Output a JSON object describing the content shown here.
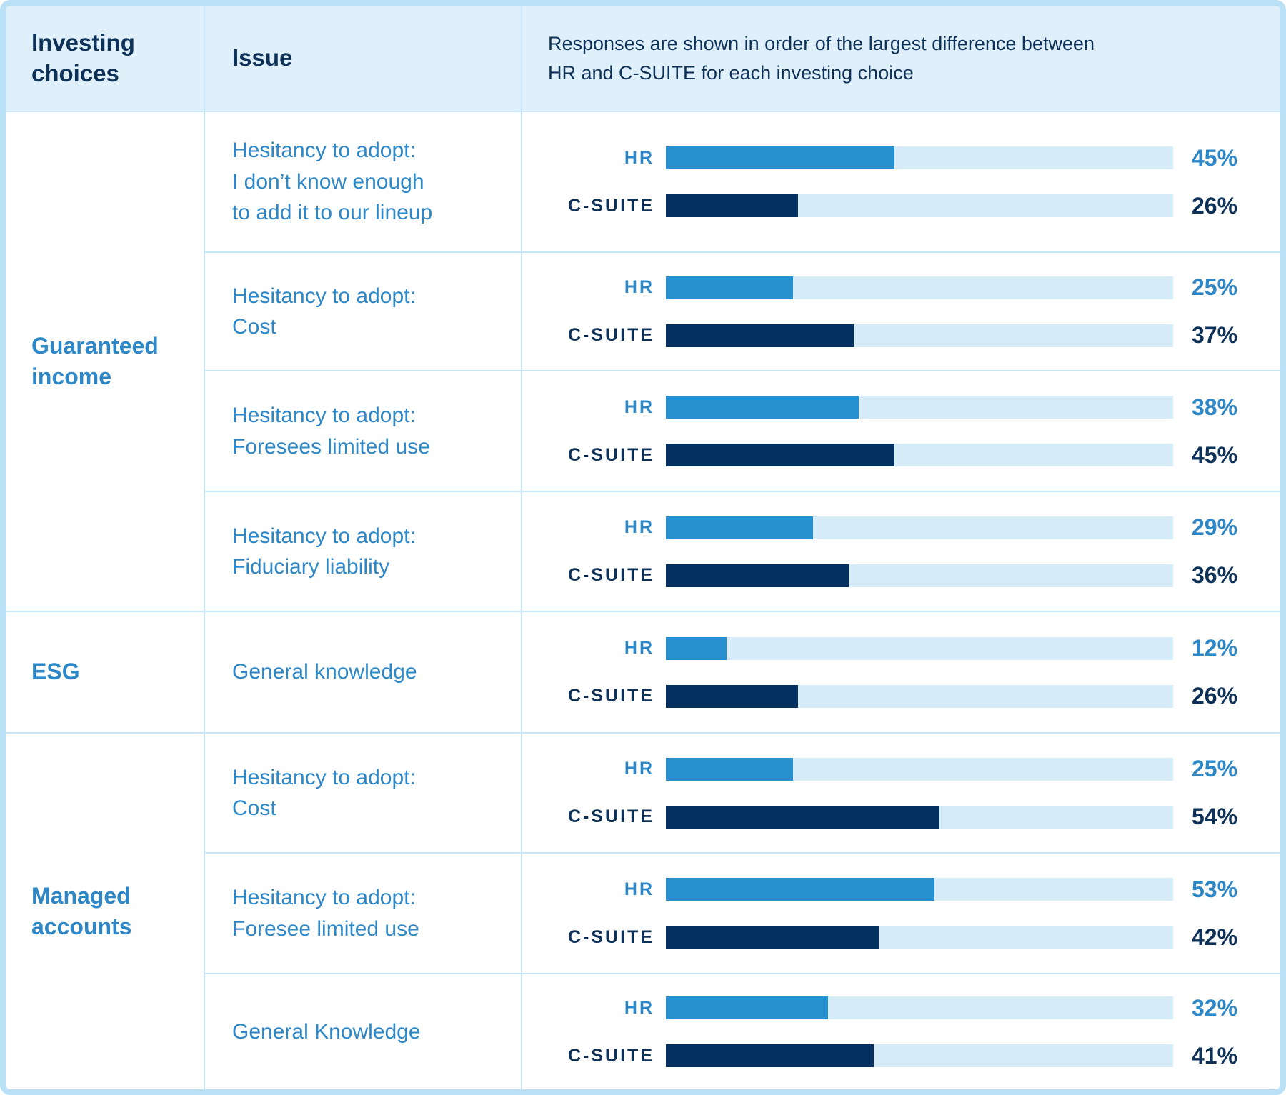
{
  "display": {
    "header": {
      "col1": "Investing\nchoices",
      "col2": "Issue",
      "col3": "Responses are shown in order of the largest difference between\nHR and C-SUITE for each investing choice"
    },
    "labels": {
      "hr": "HR",
      "csuite": "C-SUITE"
    },
    "choices": [
      "Guaranteed\nincome",
      "ESG",
      "Managed\naccounts"
    ],
    "issues": [
      "Hesitancy to adopt:\nI don’t know enough\nto add it to our lineup",
      "Hesitancy to adopt:\nCost",
      "Hesitancy to adopt:\nForesees limited use",
      "Hesitancy to adopt:\nFiduciary liability",
      "General knowledge",
      "Hesitancy to adopt:\nCost",
      "Hesitancy to adopt:\nForesee limited use",
      "General Knowledge"
    ]
  },
  "colors": {
    "hr_bar": "#2990d0",
    "csuite_bar": "#03305e",
    "bar_track": "#d6ecf8",
    "blue_text": "#2e87c6",
    "navy_text": "#0e3157",
    "header_bg": "#dff0fb",
    "grid_line": "#c7e6f7",
    "outer_border": "#bae0f6"
  },
  "chart_data": {
    "type": "bar",
    "orientation": "horizontal",
    "unit": "%",
    "xlim": [
      0,
      100
    ],
    "series_names": [
      "HR",
      "C-SUITE"
    ],
    "note": "Responses are shown in order of the largest difference between HR and C-SUITE for each investing choice",
    "groups": [
      {
        "investing_choice": "Guaranteed income",
        "issues": [
          {
            "issue": "Hesitancy to adopt: I don’t know enough to add it to our lineup",
            "HR": 45,
            "C-SUITE": 26
          },
          {
            "issue": "Hesitancy to adopt: Cost",
            "HR": 25,
            "C-SUITE": 37
          },
          {
            "issue": "Hesitancy to adopt: Foresees limited use",
            "HR": 38,
            "C-SUITE": 45
          },
          {
            "issue": "Hesitancy to adopt: Fiduciary liability",
            "HR": 29,
            "C-SUITE": 36
          }
        ]
      },
      {
        "investing_choice": "ESG",
        "issues": [
          {
            "issue": "General knowledge",
            "HR": 12,
            "C-SUITE": 26
          }
        ]
      },
      {
        "investing_choice": "Managed accounts",
        "issues": [
          {
            "issue": "Hesitancy to adopt: Cost",
            "HR": 25,
            "C-SUITE": 54
          },
          {
            "issue": "Hesitancy to adopt: Foresee limited use",
            "HR": 53,
            "C-SUITE": 42
          },
          {
            "issue": "General Knowledge",
            "HR": 32,
            "C-SUITE": 41
          }
        ]
      }
    ]
  }
}
